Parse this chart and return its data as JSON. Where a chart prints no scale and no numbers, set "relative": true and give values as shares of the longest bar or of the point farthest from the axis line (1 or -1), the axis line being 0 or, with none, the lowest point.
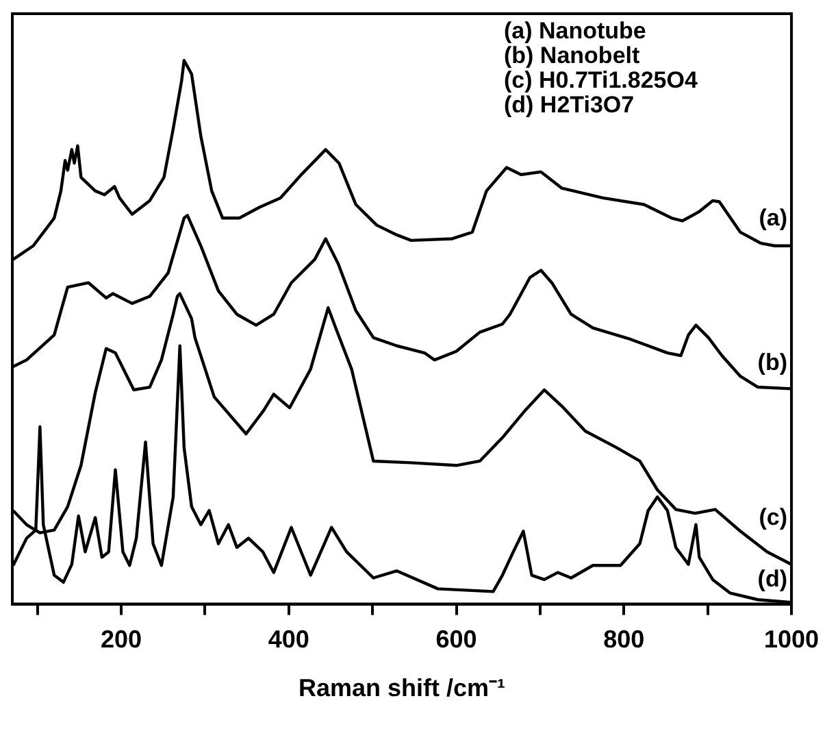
{
  "chart_data": {
    "type": "line",
    "relative": true,
    "xlabel": "Raman shift /cm⁻¹",
    "xlim": [
      70,
      1000
    ],
    "xticks": [
      {
        "value": 100,
        "label": null
      },
      200,
      {
        "value": 300,
        "label": null
      },
      400,
      {
        "value": 500,
        "label": null
      },
      600,
      {
        "value": 700,
        "label": null
      },
      800,
      {
        "value": 900,
        "label": null
      },
      1000
    ],
    "annotations": [
      "(a) Nanotube",
      "(b) Nanobelt",
      "(c) H0.7Ti1.825O4",
      "(d) H2Ti3O7"
    ],
    "legend": false,
    "marker": "none",
    "line_style": "solid",
    "grid": false,
    "series": [
      {
        "name": "(a)",
        "color": "#000000",
        "x": [
          71,
          95,
          120,
          128,
          133,
          136,
          141,
          144,
          148,
          152,
          169,
          180,
          192,
          198,
          213,
          234,
          251,
          262,
          272,
          275,
          284,
          295,
          308,
          321,
          341,
          365,
          390,
          415,
          444,
          460,
          480,
          505,
          529,
          546,
          595,
          619,
          636,
          660,
          677,
          701,
          726,
          775,
          824,
          857,
          870,
          890,
          906,
          914,
          939,
          963,
          980,
          1000
        ],
        "values": [
          0.634,
          0.659,
          0.71,
          0.76,
          0.816,
          0.798,
          0.836,
          0.811,
          0.843,
          0.785,
          0.76,
          0.753,
          0.768,
          0.747,
          0.717,
          0.742,
          0.785,
          0.874,
          0.962,
          1.0,
          0.975,
          0.861,
          0.76,
          0.71,
          0.71,
          0.73,
          0.747,
          0.79,
          0.836,
          0.811,
          0.735,
          0.697,
          0.679,
          0.669,
          0.672,
          0.684,
          0.76,
          0.803,
          0.79,
          0.795,
          0.765,
          0.747,
          0.735,
          0.71,
          0.705,
          0.722,
          0.742,
          0.74,
          0.684,
          0.664,
          0.659,
          0.659
        ]
      },
      {
        "name": "(b)",
        "color": "#000000",
        "x": [
          71,
          87,
          120,
          136,
          161,
          182,
          190,
          213,
          234,
          256,
          275,
          279,
          295,
          316,
          338,
          361,
          382,
          403,
          431,
          444,
          459,
          480,
          501,
          529,
          562,
          574,
          600,
          628,
          655,
          664,
          688,
          701,
          714,
          737,
          763,
          808,
          852,
          868,
          877,
          886,
          901,
          917,
          939,
          960,
          1000
        ],
        "values": [
          0.437,
          0.449,
          0.495,
          0.583,
          0.591,
          0.563,
          0.571,
          0.553,
          0.566,
          0.609,
          0.71,
          0.715,
          0.659,
          0.576,
          0.533,
          0.513,
          0.533,
          0.591,
          0.634,
          0.672,
          0.626,
          0.54,
          0.49,
          0.475,
          0.462,
          0.449,
          0.465,
          0.5,
          0.515,
          0.533,
          0.601,
          0.614,
          0.591,
          0.533,
          0.508,
          0.487,
          0.462,
          0.457,
          0.495,
          0.513,
          0.49,
          0.457,
          0.419,
          0.399,
          0.396
        ]
      },
      {
        "name": "(c)",
        "color": "#000000",
        "x": [
          71,
          87,
          103,
          120,
          136,
          152,
          169,
          182,
          193,
          215,
          234,
          248,
          262,
          267,
          270,
          284,
          288,
          311,
          349,
          370,
          382,
          401,
          426,
          447,
          456,
          475,
          501,
          546,
          600,
          628,
          655,
          682,
          705,
          726,
          754,
          791,
          819,
          840,
          862,
          885,
          909,
          939,
          971,
          1000
        ],
        "values": [
          0.172,
          0.146,
          0.131,
          0.136,
          0.179,
          0.255,
          0.389,
          0.47,
          0.462,
          0.394,
          0.399,
          0.449,
          0.533,
          0.566,
          0.571,
          0.525,
          0.49,
          0.381,
          0.313,
          0.356,
          0.386,
          0.361,
          0.432,
          0.545,
          0.508,
          0.432,
          0.263,
          0.26,
          0.255,
          0.263,
          0.306,
          0.356,
          0.394,
          0.364,
          0.318,
          0.288,
          0.263,
          0.21,
          0.174,
          0.167,
          0.174,
          0.134,
          0.096,
          0.073
        ]
      },
      {
        "name": "(d)",
        "color": "#000000",
        "x": [
          71,
          87,
          98,
          103,
          107,
          120,
          131,
          141,
          149,
          157,
          169,
          177,
          185,
          193,
          202,
          210,
          218,
          229,
          238,
          248,
          262,
          270,
          275,
          284,
          295,
          305,
          316,
          328,
          338,
          352,
          369,
          382,
          403,
          426,
          451,
          469,
          501,
          529,
          578,
          644,
          655,
          668,
          680,
          690,
          705,
          721,
          737,
          763,
          796,
          819,
          829,
          840,
          852,
          862,
          877,
          886,
          890,
          906,
          927,
          960,
          1000
        ],
        "values": [
          0.071,
          0.121,
          0.136,
          0.326,
          0.146,
          0.053,
          0.04,
          0.073,
          0.162,
          0.096,
          0.159,
          0.086,
          0.096,
          0.247,
          0.096,
          0.071,
          0.121,
          0.298,
          0.111,
          0.071,
          0.197,
          0.475,
          0.288,
          0.179,
          0.146,
          0.172,
          0.111,
          0.146,
          0.104,
          0.121,
          0.096,
          0.058,
          0.141,
          0.053,
          0.141,
          0.096,
          0.048,
          0.061,
          0.028,
          0.023,
          0.053,
          0.096,
          0.134,
          0.053,
          0.045,
          0.058,
          0.048,
          0.071,
          0.071,
          0.111,
          0.172,
          0.197,
          0.172,
          0.104,
          0.073,
          0.146,
          0.086,
          0.045,
          0.02,
          0.008,
          0.003
        ]
      }
    ]
  }
}
